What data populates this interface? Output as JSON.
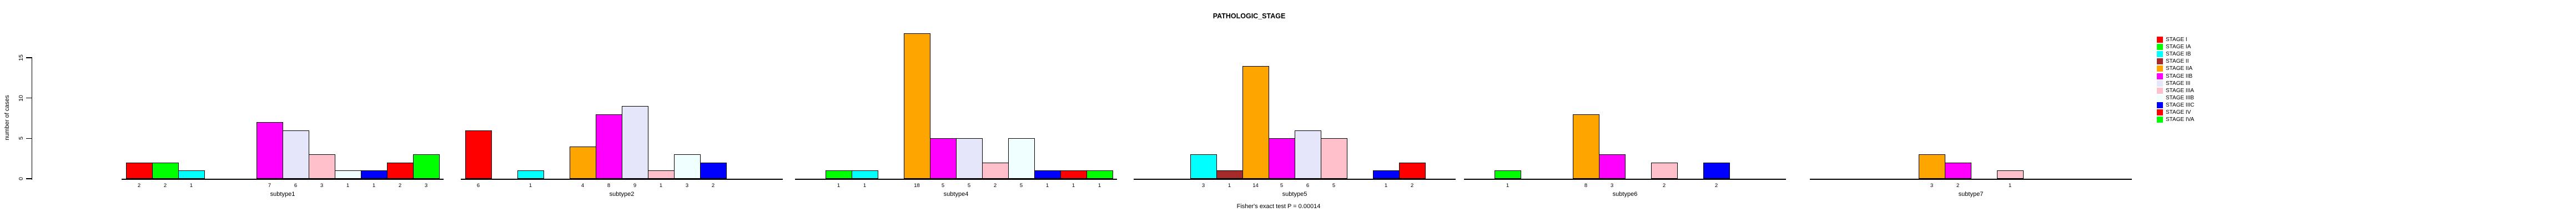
{
  "chart_data": {
    "type": "bar",
    "title": "PATHOLOGIC_STAGE",
    "caption": "Fisher's exact test P = 0.00014",
    "ylabel": "number of cases",
    "xlabel": "",
    "ylim": [
      0,
      15
    ],
    "yticks": [
      "0",
      "5",
      "10",
      "15"
    ],
    "grid": false,
    "legend_position": "right",
    "bar_value_labels": true,
    "categories": [
      "subtype1",
      "subtype2",
      "subtype4",
      "subtype5",
      "subtype6",
      "subtype7"
    ],
    "series": [
      {
        "name": "STAGE I",
        "color": "#FF0000",
        "values": [
          2,
          6,
          0,
          0,
          0,
          0
        ]
      },
      {
        "name": "STAGE IA",
        "color": "#00FF00",
        "values": [
          2,
          0,
          1,
          0,
          1,
          0
        ]
      },
      {
        "name": "STAGE IB",
        "color": "#00FFFF",
        "values": [
          1,
          1,
          1,
          3,
          0,
          0
        ]
      },
      {
        "name": "STAGE II",
        "color": "#A52A2A",
        "values": [
          0,
          0,
          0,
          1,
          0,
          0
        ]
      },
      {
        "name": "STAGE IIA",
        "color": "#FFA500",
        "values": [
          0,
          4,
          18,
          14,
          8,
          3
        ]
      },
      {
        "name": "STAGE IIB",
        "color": "#FF00FF",
        "values": [
          7,
          8,
          5,
          5,
          3,
          2
        ]
      },
      {
        "name": "STAGE III",
        "color": "#E6E6FA",
        "values": [
          6,
          9,
          5,
          6,
          0,
          0
        ]
      },
      {
        "name": "STAGE IIIA",
        "color": "#FFC0CB",
        "values": [
          3,
          1,
          2,
          5,
          2,
          1
        ]
      },
      {
        "name": "STAGE IIIB",
        "color": "#F0FFFF",
        "values": [
          1,
          3,
          5,
          0,
          0,
          0
        ]
      },
      {
        "name": "STAGE IIIC",
        "color": "#0000FF",
        "values": [
          1,
          2,
          1,
          1,
          2,
          0
        ]
      },
      {
        "name": "STAGE IV",
        "color": "#FF0000",
        "values": [
          2,
          0,
          1,
          2,
          0,
          0
        ]
      },
      {
        "name": "STAGE IVA",
        "color": "#00FF00",
        "values": [
          3,
          0,
          1,
          0,
          0,
          0
        ]
      }
    ]
  }
}
